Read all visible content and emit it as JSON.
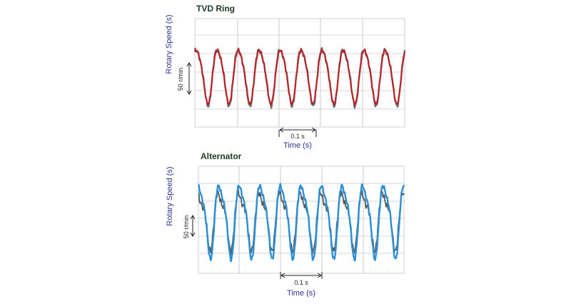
{
  "chart_data": [
    {
      "type": "line",
      "title": "TVD Ring",
      "ylabel": "Rotary Speed (s)",
      "xlabel": "Time (s)",
      "time_scale_label": "0.1 s",
      "speed_scale_label": "50 r/min",
      "grid": true,
      "series": [
        {
          "color": "#6b6b6b",
          "cycles": 10,
          "amplitude_rpm": 50,
          "period_s": 0.054
        },
        {
          "color": "#b5262b",
          "cycles": 10,
          "amplitude_rpm": 50,
          "period_s": 0.054
        }
      ]
    },
    {
      "type": "line",
      "title": "Alternator",
      "ylabel": "Rotary Speed (s)",
      "xlabel": "Time (s)",
      "time_scale_label": "0.1 s",
      "speed_scale_label": "50 r/min",
      "grid": true,
      "series": [
        {
          "color": "#5a5a5a",
          "cycles": 10,
          "amplitude_rpm": 50,
          "period_s": 0.054
        },
        {
          "color": "#2b8fd8",
          "cycles": 10,
          "amplitude_rpm": 50,
          "period_s": 0.054
        }
      ]
    }
  ]
}
